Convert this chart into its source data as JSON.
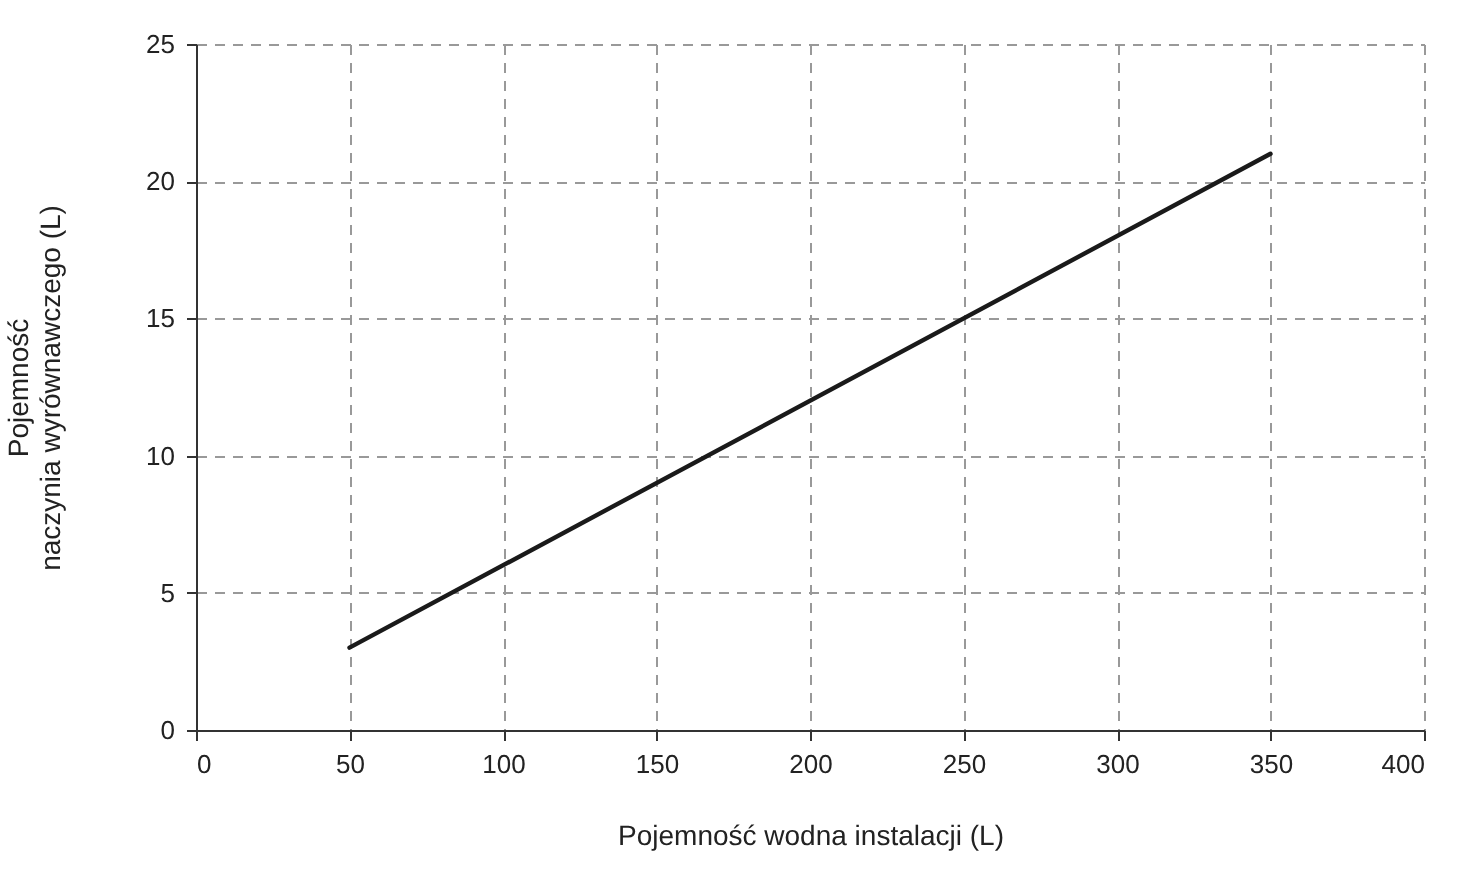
{
  "chart_data": {
    "type": "line",
    "xlabel": "Pojemność wodna instalacji (L)",
    "ylabel": "Pojemność\nnaczynia wyrównawczego (L)",
    "x": [
      50,
      350
    ],
    "series": [
      {
        "color": "#1a1a1a",
        "values": [
          3,
          21
        ]
      }
    ],
    "xlim": [
      0,
      400
    ],
    "xticks": [
      0,
      50,
      100,
      150,
      200,
      250,
      300,
      350,
      400
    ],
    "ylim": [
      0,
      25
    ],
    "yticks": [
      0,
      5,
      10,
      15,
      20,
      25
    ],
    "grid": true,
    "legend": false,
    "marker": "none",
    "line_style": "solid"
  }
}
